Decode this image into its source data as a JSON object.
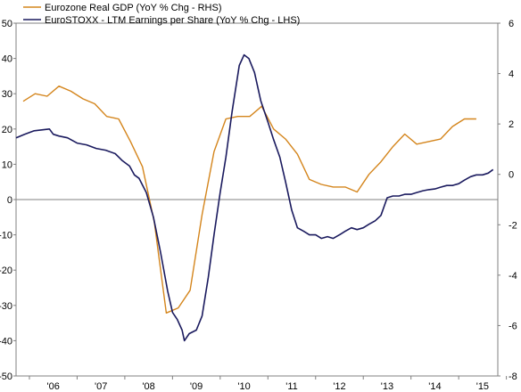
{
  "chart_data": {
    "type": "line",
    "title": "",
    "xlabel": "",
    "legend_position": "top-left",
    "grid": false,
    "x_categories": [
      "'06",
      "'07",
      "'08",
      "'09",
      "'10",
      "'11",
      "'12",
      "'13",
      "'14",
      "'15"
    ],
    "x_range": [
      2005.72,
      2015.82
    ],
    "left_axis": {
      "ylim": [
        -50,
        50
      ],
      "ticks": [
        -50,
        -40,
        -30,
        -20,
        -10,
        0,
        10,
        20,
        30,
        40,
        50
      ]
    },
    "right_axis": {
      "ylim": [
        -8,
        6
      ],
      "ticks": [
        -8,
        -6,
        -4,
        -2,
        0,
        2,
        4,
        6
      ]
    },
    "series": [
      {
        "name": "Eurozone Real GDP (YoY % Chg - RHS)",
        "axis": "right",
        "color": "#d4851c",
        "x": [
          2005.87,
          2006.12,
          2006.37,
          2006.62,
          2006.87,
          2007.12,
          2007.37,
          2007.62,
          2007.87,
          2008.12,
          2008.37,
          2008.62,
          2008.87,
          2009.12,
          2009.37,
          2009.62,
          2009.87,
          2010.12,
          2010.37,
          2010.62,
          2010.87,
          2011.12,
          2011.37,
          2011.62,
          2011.87,
          2012.12,
          2012.37,
          2012.62,
          2012.87,
          2013.12,
          2013.37,
          2013.62,
          2013.87,
          2014.12,
          2014.37,
          2014.62,
          2014.87,
          2015.12,
          2015.37
        ],
        "values": [
          2.9,
          3.2,
          3.1,
          3.5,
          3.3,
          3.0,
          2.8,
          2.3,
          2.2,
          1.3,
          0.3,
          -1.9,
          -5.5,
          -5.3,
          -4.6,
          -1.6,
          0.9,
          2.2,
          2.3,
          2.3,
          2.7,
          1.8,
          1.4,
          0.8,
          -0.2,
          -0.4,
          -0.5,
          -0.5,
          -0.7,
          0.0,
          0.5,
          1.1,
          1.6,
          1.2,
          1.3,
          1.4,
          1.9,
          2.2,
          2.2
        ]
      },
      {
        "name": "EuroSTOXX - LTM Earnings per Share (YoY % Chg - LHS)",
        "axis": "left",
        "color": "#1a1a5e",
        "x": [
          2005.72,
          2005.9,
          2006.1,
          2006.3,
          2006.42,
          2006.5,
          2006.62,
          2006.8,
          2007.0,
          2007.2,
          2007.4,
          2007.6,
          2007.8,
          2007.95,
          2008.1,
          2008.2,
          2008.3,
          2008.45,
          2008.6,
          2008.75,
          2008.9,
          2009.0,
          2009.1,
          2009.2,
          2009.25,
          2009.35,
          2009.5,
          2009.62,
          2009.75,
          2009.87,
          2010.0,
          2010.12,
          2010.25,
          2010.4,
          2010.5,
          2010.6,
          2010.72,
          2010.85,
          2011.0,
          2011.12,
          2011.25,
          2011.37,
          2011.5,
          2011.62,
          2011.75,
          2011.87,
          2012.0,
          2012.12,
          2012.25,
          2012.37,
          2012.5,
          2012.62,
          2012.75,
          2012.87,
          2013.0,
          2013.12,
          2013.25,
          2013.37,
          2013.5,
          2013.62,
          2013.75,
          2013.87,
          2014.0,
          2014.12,
          2014.25,
          2014.37,
          2014.5,
          2014.62,
          2014.75,
          2014.87,
          2015.0,
          2015.12,
          2015.25,
          2015.37,
          2015.5,
          2015.62,
          2015.72
        ],
        "values": [
          17.5,
          18.5,
          19.5,
          19.8,
          20.0,
          18.5,
          18.0,
          17.5,
          16.0,
          15.5,
          14.5,
          14.0,
          13.0,
          11.0,
          9.5,
          7.0,
          6.0,
          2.0,
          -5.0,
          -15.0,
          -26.0,
          -32.0,
          -34.0,
          -37.0,
          -40.0,
          -38.0,
          -37.0,
          -33.0,
          -22.0,
          -10.0,
          2.0,
          12.0,
          25.0,
          38.0,
          41.0,
          40.0,
          36.0,
          28.0,
          22.0,
          17.0,
          12.0,
          5.0,
          -3.0,
          -8.0,
          -9.0,
          -10.0,
          -10.0,
          -11.0,
          -10.5,
          -11.0,
          -10.0,
          -9.0,
          -8.0,
          -8.5,
          -8.0,
          -7.0,
          -6.0,
          -4.5,
          0.5,
          1.0,
          1.0,
          1.5,
          1.5,
          2.0,
          2.5,
          2.8,
          3.0,
          3.5,
          4.0,
          4.0,
          4.5,
          5.5,
          6.5,
          7.0,
          7.0,
          7.5,
          8.5
        ]
      }
    ]
  }
}
